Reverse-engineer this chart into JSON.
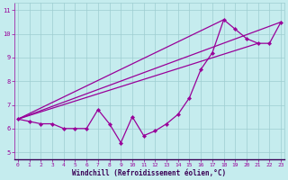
{
  "xlabel": "Windchill (Refroidissement éolien,°C)",
  "background_color": "#c5ecee",
  "line_color": "#990099",
  "grid_color": "#9ecdd0",
  "spine_bottom_color": "#3a0060",
  "x_data": [
    0,
    1,
    2,
    3,
    4,
    5,
    6,
    7,
    8,
    9,
    10,
    11,
    12,
    13,
    14,
    15,
    16,
    17,
    18,
    19,
    20,
    21,
    22,
    23
  ],
  "y_data": [
    6.4,
    6.3,
    6.2,
    6.2,
    6.0,
    6.0,
    6.0,
    6.8,
    6.2,
    5.4,
    6.5,
    5.7,
    5.9,
    6.2,
    6.6,
    7.3,
    8.5,
    9.2,
    10.6,
    10.2,
    9.8,
    9.6,
    9.6,
    10.5
  ],
  "line1_x": [
    0,
    23
  ],
  "line1_y": [
    6.4,
    10.5
  ],
  "line2_x": [
    0,
    21
  ],
  "line2_y": [
    6.4,
    9.6
  ],
  "line3_x": [
    0,
    18
  ],
  "line3_y": [
    6.4,
    10.6
  ],
  "xlim": [
    -0.3,
    23.3
  ],
  "ylim": [
    4.7,
    11.3
  ],
  "yticks": [
    5,
    6,
    7,
    8,
    9,
    10,
    11
  ],
  "xticks": [
    0,
    1,
    2,
    3,
    4,
    5,
    6,
    7,
    8,
    9,
    10,
    11,
    12,
    13,
    14,
    15,
    16,
    17,
    18,
    19,
    20,
    21,
    22,
    23
  ]
}
